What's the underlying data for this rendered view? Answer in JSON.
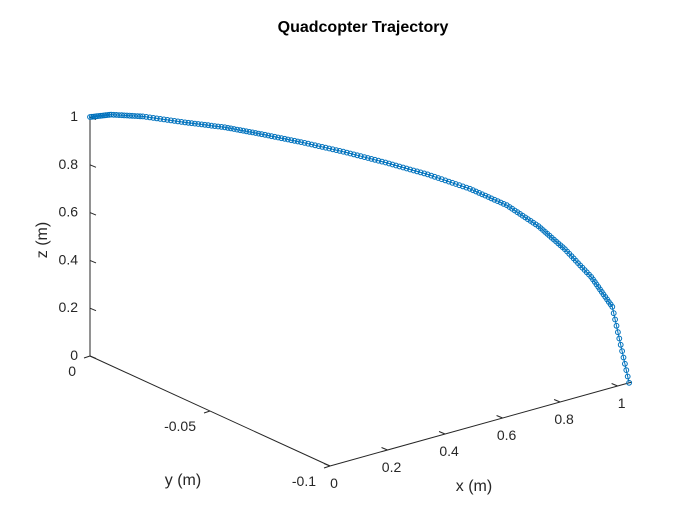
{
  "chart_data": {
    "type": "line",
    "title": "Quadcopter Trajectory",
    "xlabel": "x (m)",
    "ylabel": "y (m)",
    "zlabel": "z (m)",
    "xlim": [
      0,
      1.05
    ],
    "ylim": [
      -0.1,
      0
    ],
    "zlim": [
      0,
      1
    ],
    "x_ticks": [
      "0",
      "0.2",
      "0.4",
      "0.6",
      "0.8",
      "1"
    ],
    "y_ticks": [
      "0",
      "-0.05",
      "-0.1"
    ],
    "z_ticks": [
      "0",
      "0.2",
      "0.4",
      "0.6",
      "0.8",
      "1"
    ],
    "marker": "circle",
    "color": "#0072BD",
    "grid": false,
    "series": [
      {
        "name": "",
        "x": [
          0.0,
          0.04,
          0.1,
          0.18,
          0.26,
          0.33,
          0.4,
          0.48,
          0.56,
          0.64,
          0.72,
          0.79,
          0.85,
          0.9,
          0.95,
          0.99,
          1.04
        ],
        "y": [
          0.0,
          -0.004,
          -0.01,
          -0.018,
          -0.025,
          -0.032,
          -0.04,
          -0.048,
          -0.056,
          -0.064,
          -0.072,
          -0.079,
          -0.085,
          -0.09,
          -0.095,
          -0.099,
          -0.1
        ],
        "z": [
          1.0,
          1.015,
          1.015,
          1.0,
          0.985,
          0.965,
          0.945,
          0.915,
          0.88,
          0.84,
          0.79,
          0.73,
          0.65,
          0.56,
          0.45,
          0.33,
          0.0
        ]
      }
    ]
  }
}
